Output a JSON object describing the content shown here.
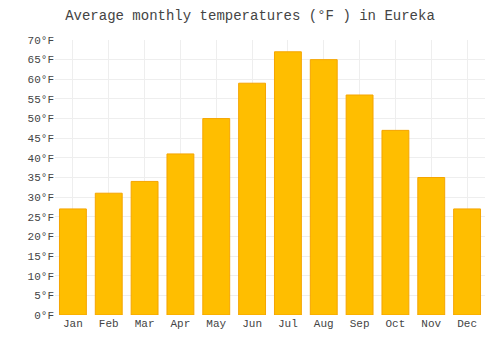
{
  "chart_data": {
    "type": "bar",
    "title": "Average monthly temperatures (°F ) in Eureka",
    "categories": [
      "Jan",
      "Feb",
      "Mar",
      "Apr",
      "May",
      "Jun",
      "Jul",
      "Aug",
      "Sep",
      "Oct",
      "Nov",
      "Dec"
    ],
    "values": [
      27,
      31,
      34,
      41,
      50,
      59,
      67,
      65,
      56,
      47,
      35,
      27
    ],
    "color": "#FFBE00",
    "ylim": [
      0,
      70
    ],
    "yticks": [
      {
        "value": 0,
        "label": "0°F"
      },
      {
        "value": 5,
        "label": "5°F"
      },
      {
        "value": 10,
        "label": "10°F"
      },
      {
        "value": 15,
        "label": "15°F"
      },
      {
        "value": 20,
        "label": "20°F"
      },
      {
        "value": 25,
        "label": "25°F"
      },
      {
        "value": 30,
        "label": "30°F"
      },
      {
        "value": 35,
        "label": "35°F"
      },
      {
        "value": 40,
        "label": "40°F"
      },
      {
        "value": 45,
        "label": "45°F"
      },
      {
        "value": 50,
        "label": "50°F"
      },
      {
        "value": 55,
        "label": "55°F"
      },
      {
        "value": 60,
        "label": "60°F"
      },
      {
        "value": 65,
        "label": "65°F"
      },
      {
        "value": 70,
        "label": "70°F"
      }
    ],
    "grid": true
  }
}
